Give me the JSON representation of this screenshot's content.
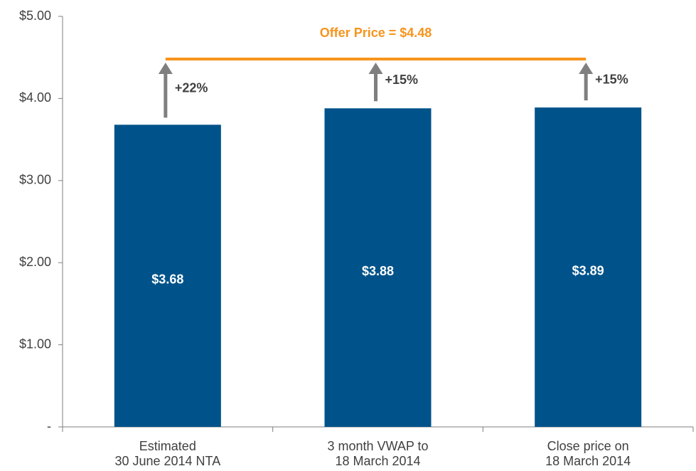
{
  "chart_data": {
    "type": "bar",
    "categories": [
      [
        "Estimated",
        "30 June 2014 NTA"
      ],
      [
        "3 month VWAP to",
        "18 March 2014"
      ],
      [
        "Close price on",
        "18 March 2014"
      ]
    ],
    "values": [
      3.68,
      3.88,
      3.89
    ],
    "value_labels": [
      "$3.68",
      "$3.88",
      "$3.89"
    ],
    "color": "#00538a",
    "ylim": [
      0,
      5
    ],
    "yticks": [
      {
        "value": 0,
        "label": "-"
      },
      {
        "value": 1,
        "label": "$1.00"
      },
      {
        "value": 2,
        "label": "$2.00"
      },
      {
        "value": 3,
        "label": "$3.00"
      },
      {
        "value": 4,
        "label": "$4.00"
      },
      {
        "value": 5,
        "label": "$5.00"
      }
    ],
    "offer_line": {
      "label": "Offer Price = $4.48",
      "value": 4.48,
      "color": "#f7941d"
    },
    "arrow_labels": [
      "+22%",
      "+15%",
      "+15%"
    ],
    "arrow_color": "#7f7f7f"
  }
}
